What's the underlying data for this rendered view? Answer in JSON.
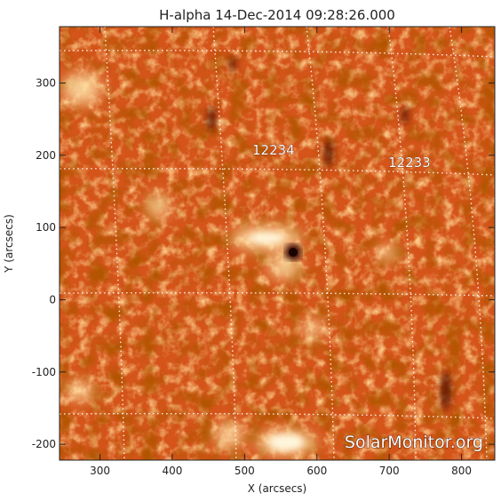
{
  "title": "H-alpha 14-Dec-2014 09:28:26.000",
  "x_axis": {
    "label": "X (arcsecs)",
    "range": [
      244,
      846
    ],
    "ticks": [
      "300",
      "400",
      "500",
      "600",
      "700",
      "800"
    ]
  },
  "y_axis": {
    "label": "Y (arcsecs)",
    "range": [
      -222,
      378
    ],
    "ticks": [
      "-200",
      "-100",
      "0",
      "100",
      "200",
      "300"
    ]
  },
  "regions": [
    {
      "number": "12234",
      "x": 555,
      "y": 208
    },
    {
      "number": "12233",
      "x": 728,
      "y": 190
    }
  ],
  "watermark": "SolarMonitor.org",
  "colors": {
    "solar_base": "#d4541a",
    "solar_bright": "#fff0c8",
    "solar_dark": "#3a0a00",
    "grid": "#ffffff"
  }
}
